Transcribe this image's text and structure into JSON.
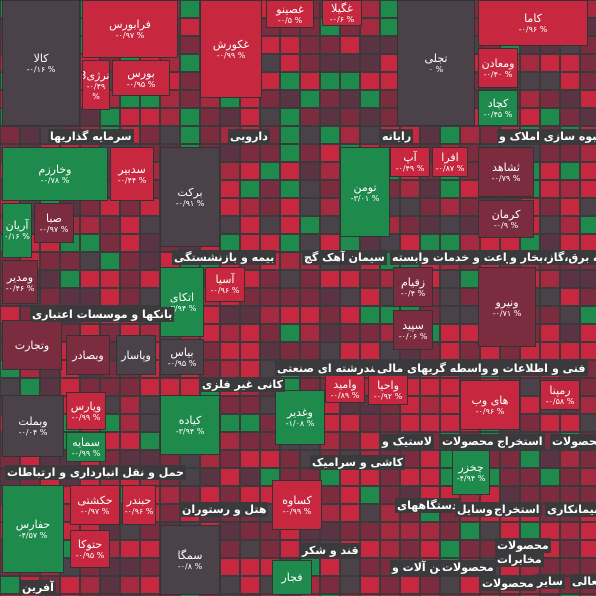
{
  "tiles": [
    {
      "name": "کالا",
      "change": "-۰/۱۶ %"
    },
    {
      "name": "فرابورس",
      "change": "-۰/۹۷ %"
    },
    {
      "name": "بورس",
      "change": "-۰/۹۵ %"
    },
    {
      "name": "انرژی3",
      "change": "-۰/۴۹ %"
    },
    {
      "name": "غکورش",
      "change": "-۰/۹۹ %"
    },
    {
      "name": "غصینو",
      "change": "-۰/۵ %"
    },
    {
      "name": "غگیلا",
      "change": "-۰/۶ %"
    },
    {
      "name": "تجلی",
      "change": "۰ %"
    },
    {
      "name": "کاما",
      "change": "-۰/۹۶ %"
    },
    {
      "name": "ومعادن",
      "change": "-۰/۴۰ %"
    },
    {
      "name": "کچاد",
      "change": "-۰/۴۵ %"
    },
    {
      "name": "وخارزم",
      "change": "-۰/۷۸ %"
    },
    {
      "name": "سدبیر",
      "change": "-۰/۴۴ %"
    },
    {
      "name": "آریان",
      "change": "۰/۱۶ %"
    },
    {
      "name": "صبا",
      "change": "-۰/۹۷ %"
    },
    {
      "name": "ومدیر",
      "change": "-۰/۴۶ %"
    },
    {
      "name": "برکت",
      "change": "-۰/۹۱ %"
    },
    {
      "name": "تومن",
      "change": "-۳/۰۱ %"
    },
    {
      "name": "آپ",
      "change": "-۰/۴۹ %"
    },
    {
      "name": "افرا",
      "change": "-۰/۸۷ %"
    },
    {
      "name": "ثشاهد",
      "change": "-۰/۷۹ %"
    },
    {
      "name": "کرمان",
      "change": "-۰/۹ %"
    },
    {
      "name": "آسیا",
      "change": "-۰/۹۶ %"
    },
    {
      "name": "اتکای",
      "change": "-۳/۹۴ %"
    },
    {
      "name": "بیاس",
      "change": "-۰/۹۵ %"
    },
    {
      "name": "زفیام",
      "change": "-۰/۴ %"
    },
    {
      "name": "سپید",
      "change": "-۰/۰۶ %"
    },
    {
      "name": "ونیرو",
      "change": "-۰/۷۱ %"
    },
    {
      "name": "وتجارت"
    },
    {
      "name": "وبصادر"
    },
    {
      "name": "وپاسار"
    },
    {
      "name": "ویارس",
      "change": "-۰/۹۹ %"
    },
    {
      "name": "سمایه",
      "change": "-۰/۹۹ %"
    },
    {
      "name": "وبملت",
      "change": "-۰/۰۴ %"
    },
    {
      "name": "کیاده",
      "change": "-۳/۹۴ %"
    },
    {
      "name": "وامید",
      "change": "-۰/۸۹ %"
    },
    {
      "name": "وغدیر",
      "change": "-۱/۰۸ %"
    },
    {
      "name": "واحیا",
      "change": "-۰/۹۲ %"
    },
    {
      "name": "های وب",
      "change": "-۰/۹۶ %"
    },
    {
      "name": "رمپنا",
      "change": "-۰/۵۸ %"
    },
    {
      "name": "حفارس",
      "change": "-۴/۵۷ %"
    },
    {
      "name": "حکشتی",
      "change": "-۰/۹۷ %"
    },
    {
      "name": "حبندر",
      "change": "-۰/۹۶ %"
    },
    {
      "name": "حتوکا",
      "change": "-۰/۹۵ %"
    },
    {
      "name": "سمگا",
      "change": "-۰/۸ %"
    },
    {
      "name": "کساوه",
      "change": "-۰/۹۹ %"
    },
    {
      "name": "فجار"
    },
    {
      "name": "چخزر",
      "change": "-۴/۹۴ %"
    }
  ],
  "sectors": [
    "سرمایه گذاریها",
    "دارویی",
    "رایانه",
    "انبوه سازی املاک و",
    "بیمه و بازنشستگی",
    "سیمان آهک گچ",
    "زراعت و خدمات وابسته",
    "عرضه برق،گاز،بخار و",
    "بانکها و موسسات اعتباری",
    "کانی غیر فلزی",
    "چندرشته ای صنعتی",
    "واسطه گریهای مالی",
    "اطلاعات و",
    "فنی و",
    "حمل و نقل انبارداری و ارتباطات",
    "کاشی و سرامیک",
    "لاستیک و",
    "محصولات",
    "استخراج",
    "محصولات",
    "هتل و رستوران",
    "قند و شکر",
    "دستگاههای",
    "وسایل",
    "استخراج",
    "بیمانکاری",
    "محصولات",
    "مخابرات",
    "ماشین آلات و",
    "محصولات",
    "محصولات",
    "سایر",
    "فعالی",
    "آفرین"
  ]
}
